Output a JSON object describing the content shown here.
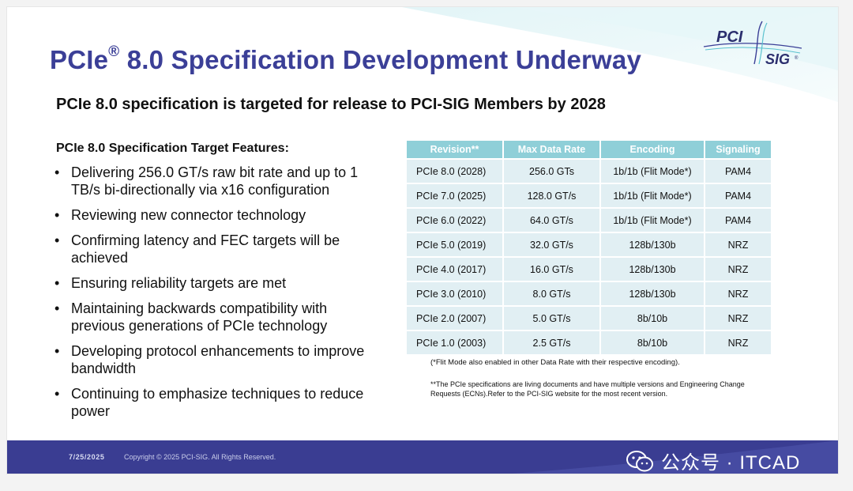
{
  "slide": {
    "title_main": "PCIe",
    "title_sup": "®",
    "title_rest": " 8.0 Specification Development Underway",
    "subtitle": "PCIe 8.0 specification is targeted for release to PCI-SIG Members by 2028",
    "features_heading": "PCIe 8.0 Specification Target Features:",
    "bullet_glyph": "•",
    "bullets": [
      "Delivering 256.0 GT/s raw bit rate and up to 1 TB/s bi-directionally via x16 configuration",
      "Reviewing new connector technology",
      "Confirming latency and FEC targets will be achieved",
      "Ensuring reliability targets are met",
      "Maintaining backwards compatibility with previous generations of PCIe technology",
      "Developing protocol enhancements to improve bandwidth",
      "Continuing to emphasize techniques to reduce power"
    ]
  },
  "logo": {
    "line1": "PCI",
    "line2": "SIG",
    "mark": "®"
  },
  "table": {
    "headers": [
      "Revision**",
      "Max Data Rate",
      "Encoding",
      "Signaling"
    ],
    "rows": [
      [
        "PCIe 8.0 (2028)",
        "256.0 GTs",
        "1b/1b (Flit Mode*)",
        "PAM4"
      ],
      [
        "PCIe 7.0 (2025)",
        "128.0 GT/s",
        "1b/1b (Flit Mode*)",
        "PAM4"
      ],
      [
        "PCIe 6.0 (2022)",
        "64.0 GT/s",
        "1b/1b (Flit Mode*)",
        "PAM4"
      ],
      [
        "PCIe 5.0 (2019)",
        "32.0 GT/s",
        "128b/130b",
        "NRZ"
      ],
      [
        "PCIe 4.0 (2017)",
        "16.0 GT/s",
        "128b/130b",
        "NRZ"
      ],
      [
        "PCIe 3.0 (2010)",
        "8.0 GT/s",
        "128b/130b",
        "NRZ"
      ],
      [
        "PCIe 2.0 (2007)",
        "5.0 GT/s",
        "8b/10b",
        "NRZ"
      ],
      [
        "PCIe 1.0 (2003)",
        "2.5 GT/s",
        "8b/10b",
        "NRZ"
      ]
    ]
  },
  "notes": {
    "flit": "(*Flit Mode also enabled in other Data Rate with their respective encoding).",
    "living": "**The PCIe specifications are living documents and have multiple versions and Engineering Change Requests (ECNs).Refer to the PCI-SIG website for the most recent version."
  },
  "footer": {
    "date": "7/25/2025",
    "copyright": "Copyright © 2025 PCI-SIG. All Rights Reserved."
  },
  "watermark": {
    "icon": "wechat-icon",
    "text": "公众号 · ITCAD"
  },
  "colors": {
    "title": "#3b3f97",
    "table_header": "#8fcfd8",
    "table_cell": "#e1eff3",
    "footer_band": "#3a3d92",
    "swoosh": "#5bc2cf"
  }
}
